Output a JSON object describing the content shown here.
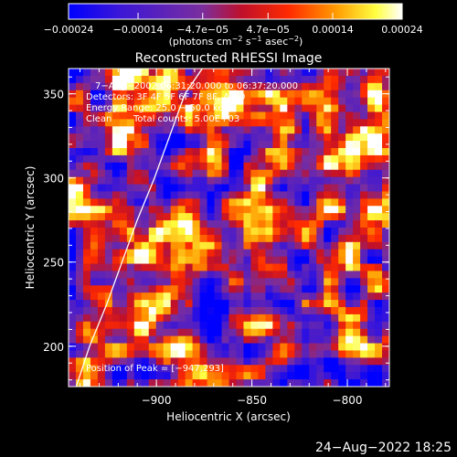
{
  "chart_data": {
    "type": "heatmap",
    "title": "Reconstructed RHESSI Image",
    "xlabel": "Heliocentric X (arcsec)",
    "ylabel": "Heliocentric Y (arcsec)",
    "xlim": [
      -946,
      -778
    ],
    "ylim": [
      176,
      365
    ],
    "x_ticks": [
      -900,
      -850,
      -800
    ],
    "x_tick_labels": [
      "−900",
      "−850",
      "−800"
    ],
    "y_ticks": [
      200,
      250,
      300,
      350
    ],
    "y_tick_labels": [
      "200",
      "250",
      "300",
      "350"
    ],
    "colorbar": {
      "range": [
        -0.00024,
        0.00024
      ],
      "ticks": [
        -0.00024,
        -0.00014,
        -4.7e-05,
        4.7e-05,
        0.00014,
        0.00024
      ],
      "tick_labels": [
        "−0.00024",
        "−0.00014",
        "−4.7e−05",
        "4.7e−05",
        "0.00014",
        "0.00024"
      ],
      "label_main": "(photons cm",
      "label_exp1": "−2",
      "label_mid": " s",
      "label_exp2": "−1",
      "label_end": " asec",
      "label_exp3": "−2",
      "label_close": ")",
      "colors": [
        "#0000ff",
        "#6a1fb5",
        "#7a2e9e",
        "#c0102a",
        "#ff2000",
        "#ff9a00",
        "#ffff40",
        "#ffffff"
      ]
    },
    "annotations": {
      "time_range": "7−Aug−2002 06:31:20.000 to 06:37:20.000",
      "detectors": "Detectors: 3F 4F 5F 6F 7F 8F, Att 0",
      "energy": "Energy Range: 25.0 − 50.0 keV",
      "clean": "Clean",
      "counts": "Total counts: 5.00E+03",
      "peak": "Position of Peak = [−947,293]"
    },
    "peak": [
      -947,
      293
    ],
    "limb": {
      "x": [
        -942,
        -935,
        -926,
        -918,
        -910,
        -901,
        -893,
        -885,
        -876,
        -870
      ],
      "y": [
        176,
        200,
        225,
        250,
        275,
        300,
        325,
        350,
        365,
        380
      ]
    },
    "hotspots": [
      {
        "x": -940,
        "y": 295,
        "v": 1.0
      },
      {
        "x": -935,
        "y": 210,
        "v": 0.95
      },
      {
        "x": -938,
        "y": 185,
        "v": 0.9
      },
      {
        "x": -918,
        "y": 322,
        "v": 0.85
      },
      {
        "x": -906,
        "y": 265,
        "v": 0.7
      },
      {
        "x": -888,
        "y": 200,
        "v": 0.8
      },
      {
        "x": -860,
        "y": 345,
        "v": 0.75
      },
      {
        "x": -853,
        "y": 230,
        "v": 0.6
      },
      {
        "x": -820,
        "y": 335,
        "v": 0.6
      },
      {
        "x": -803,
        "y": 250,
        "v": 0.8
      },
      {
        "x": -790,
        "y": 270,
        "v": 0.7
      },
      {
        "x": -800,
        "y": 202,
        "v": 0.75
      },
      {
        "x": -783,
        "y": 320,
        "v": 0.5
      },
      {
        "x": -915,
        "y": 360,
        "v": 0.6
      }
    ]
  },
  "footer": {
    "datetime": "24−Aug−2022 18:25"
  }
}
